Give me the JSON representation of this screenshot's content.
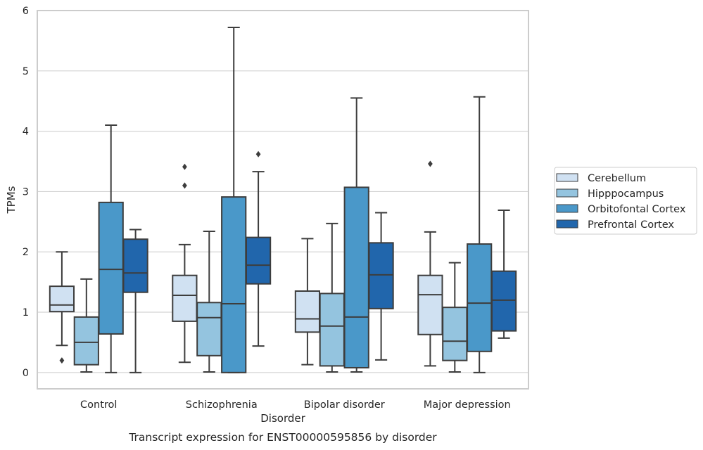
{
  "chart_data": {
    "type": "box",
    "title": "",
    "caption": "Transcript expression for ENST00000595856 by disorder",
    "xlabel": "Disorder",
    "ylabel": "TPMs",
    "ylim": [
      -0.27,
      6.0
    ],
    "yticks": [
      "0",
      "1",
      "2",
      "3",
      "4",
      "5",
      "6"
    ],
    "grid": "horizontal",
    "legend_position": "right",
    "categories": [
      "Control",
      "Schizophrenia",
      "Bipolar disorder",
      "Major depression"
    ],
    "series": [
      {
        "name": "Cerebellum",
        "color": "#d0e1f2",
        "boxes": [
          {
            "whislo": 0.45,
            "q1": 1.01,
            "med": 1.12,
            "q3": 1.43,
            "whishi": 2.0,
            "fliers": [
              0.2
            ]
          },
          {
            "whislo": 0.17,
            "q1": 0.85,
            "med": 1.28,
            "q3": 1.61,
            "whishi": 2.12,
            "fliers": [
              3.1,
              3.41
            ]
          },
          {
            "whislo": 0.13,
            "q1": 0.67,
            "med": 0.89,
            "q3": 1.35,
            "whishi": 2.22,
            "fliers": []
          },
          {
            "whislo": 0.11,
            "q1": 0.63,
            "med": 1.29,
            "q3": 1.61,
            "whishi": 2.33,
            "fliers": [
              3.46
            ]
          }
        ]
      },
      {
        "name": "Hipppocampus",
        "color": "#94c4df",
        "boxes": [
          {
            "whislo": 0.01,
            "q1": 0.13,
            "med": 0.5,
            "q3": 0.92,
            "whishi": 1.55,
            "fliers": []
          },
          {
            "whislo": 0.01,
            "q1": 0.28,
            "med": 0.91,
            "q3": 1.16,
            "whishi": 2.34,
            "fliers": []
          },
          {
            "whislo": 0.01,
            "q1": 0.11,
            "med": 0.77,
            "q3": 1.31,
            "whishi": 2.47,
            "fliers": []
          },
          {
            "whislo": 0.01,
            "q1": 0.2,
            "med": 0.52,
            "q3": 1.08,
            "whishi": 1.82,
            "fliers": []
          }
        ]
      },
      {
        "name": "Orbitofontal Cortex",
        "color": "#4a98c9",
        "boxes": [
          {
            "whislo": 0.0,
            "q1": 0.64,
            "med": 1.71,
            "q3": 2.82,
            "whishi": 4.1,
            "fliers": []
          },
          {
            "whislo": 0.0,
            "q1": 0.0,
            "med": 1.14,
            "q3": 2.91,
            "whishi": 5.72,
            "fliers": []
          },
          {
            "whislo": 0.01,
            "q1": 0.08,
            "med": 0.92,
            "q3": 3.07,
            "whishi": 4.55,
            "fliers": []
          },
          {
            "whislo": 0.0,
            "q1": 0.35,
            "med": 1.15,
            "q3": 2.13,
            "whishi": 4.57,
            "fliers": []
          }
        ]
      },
      {
        "name": "Prefrontal Cortex",
        "color": "#2166ac",
        "boxes": [
          {
            "whislo": 0.0,
            "q1": 1.33,
            "med": 1.65,
            "q3": 2.21,
            "whishi": 2.37,
            "fliers": []
          },
          {
            "whislo": 0.44,
            "q1": 1.47,
            "med": 1.78,
            "q3": 2.24,
            "whishi": 3.33,
            "fliers": [
              3.62
            ]
          },
          {
            "whislo": 0.21,
            "q1": 1.06,
            "med": 1.62,
            "q3": 2.15,
            "whishi": 2.65,
            "fliers": []
          },
          {
            "whislo": 0.57,
            "q1": 0.69,
            "med": 1.2,
            "q3": 1.68,
            "whishi": 2.69,
            "fliers": []
          }
        ]
      }
    ]
  }
}
